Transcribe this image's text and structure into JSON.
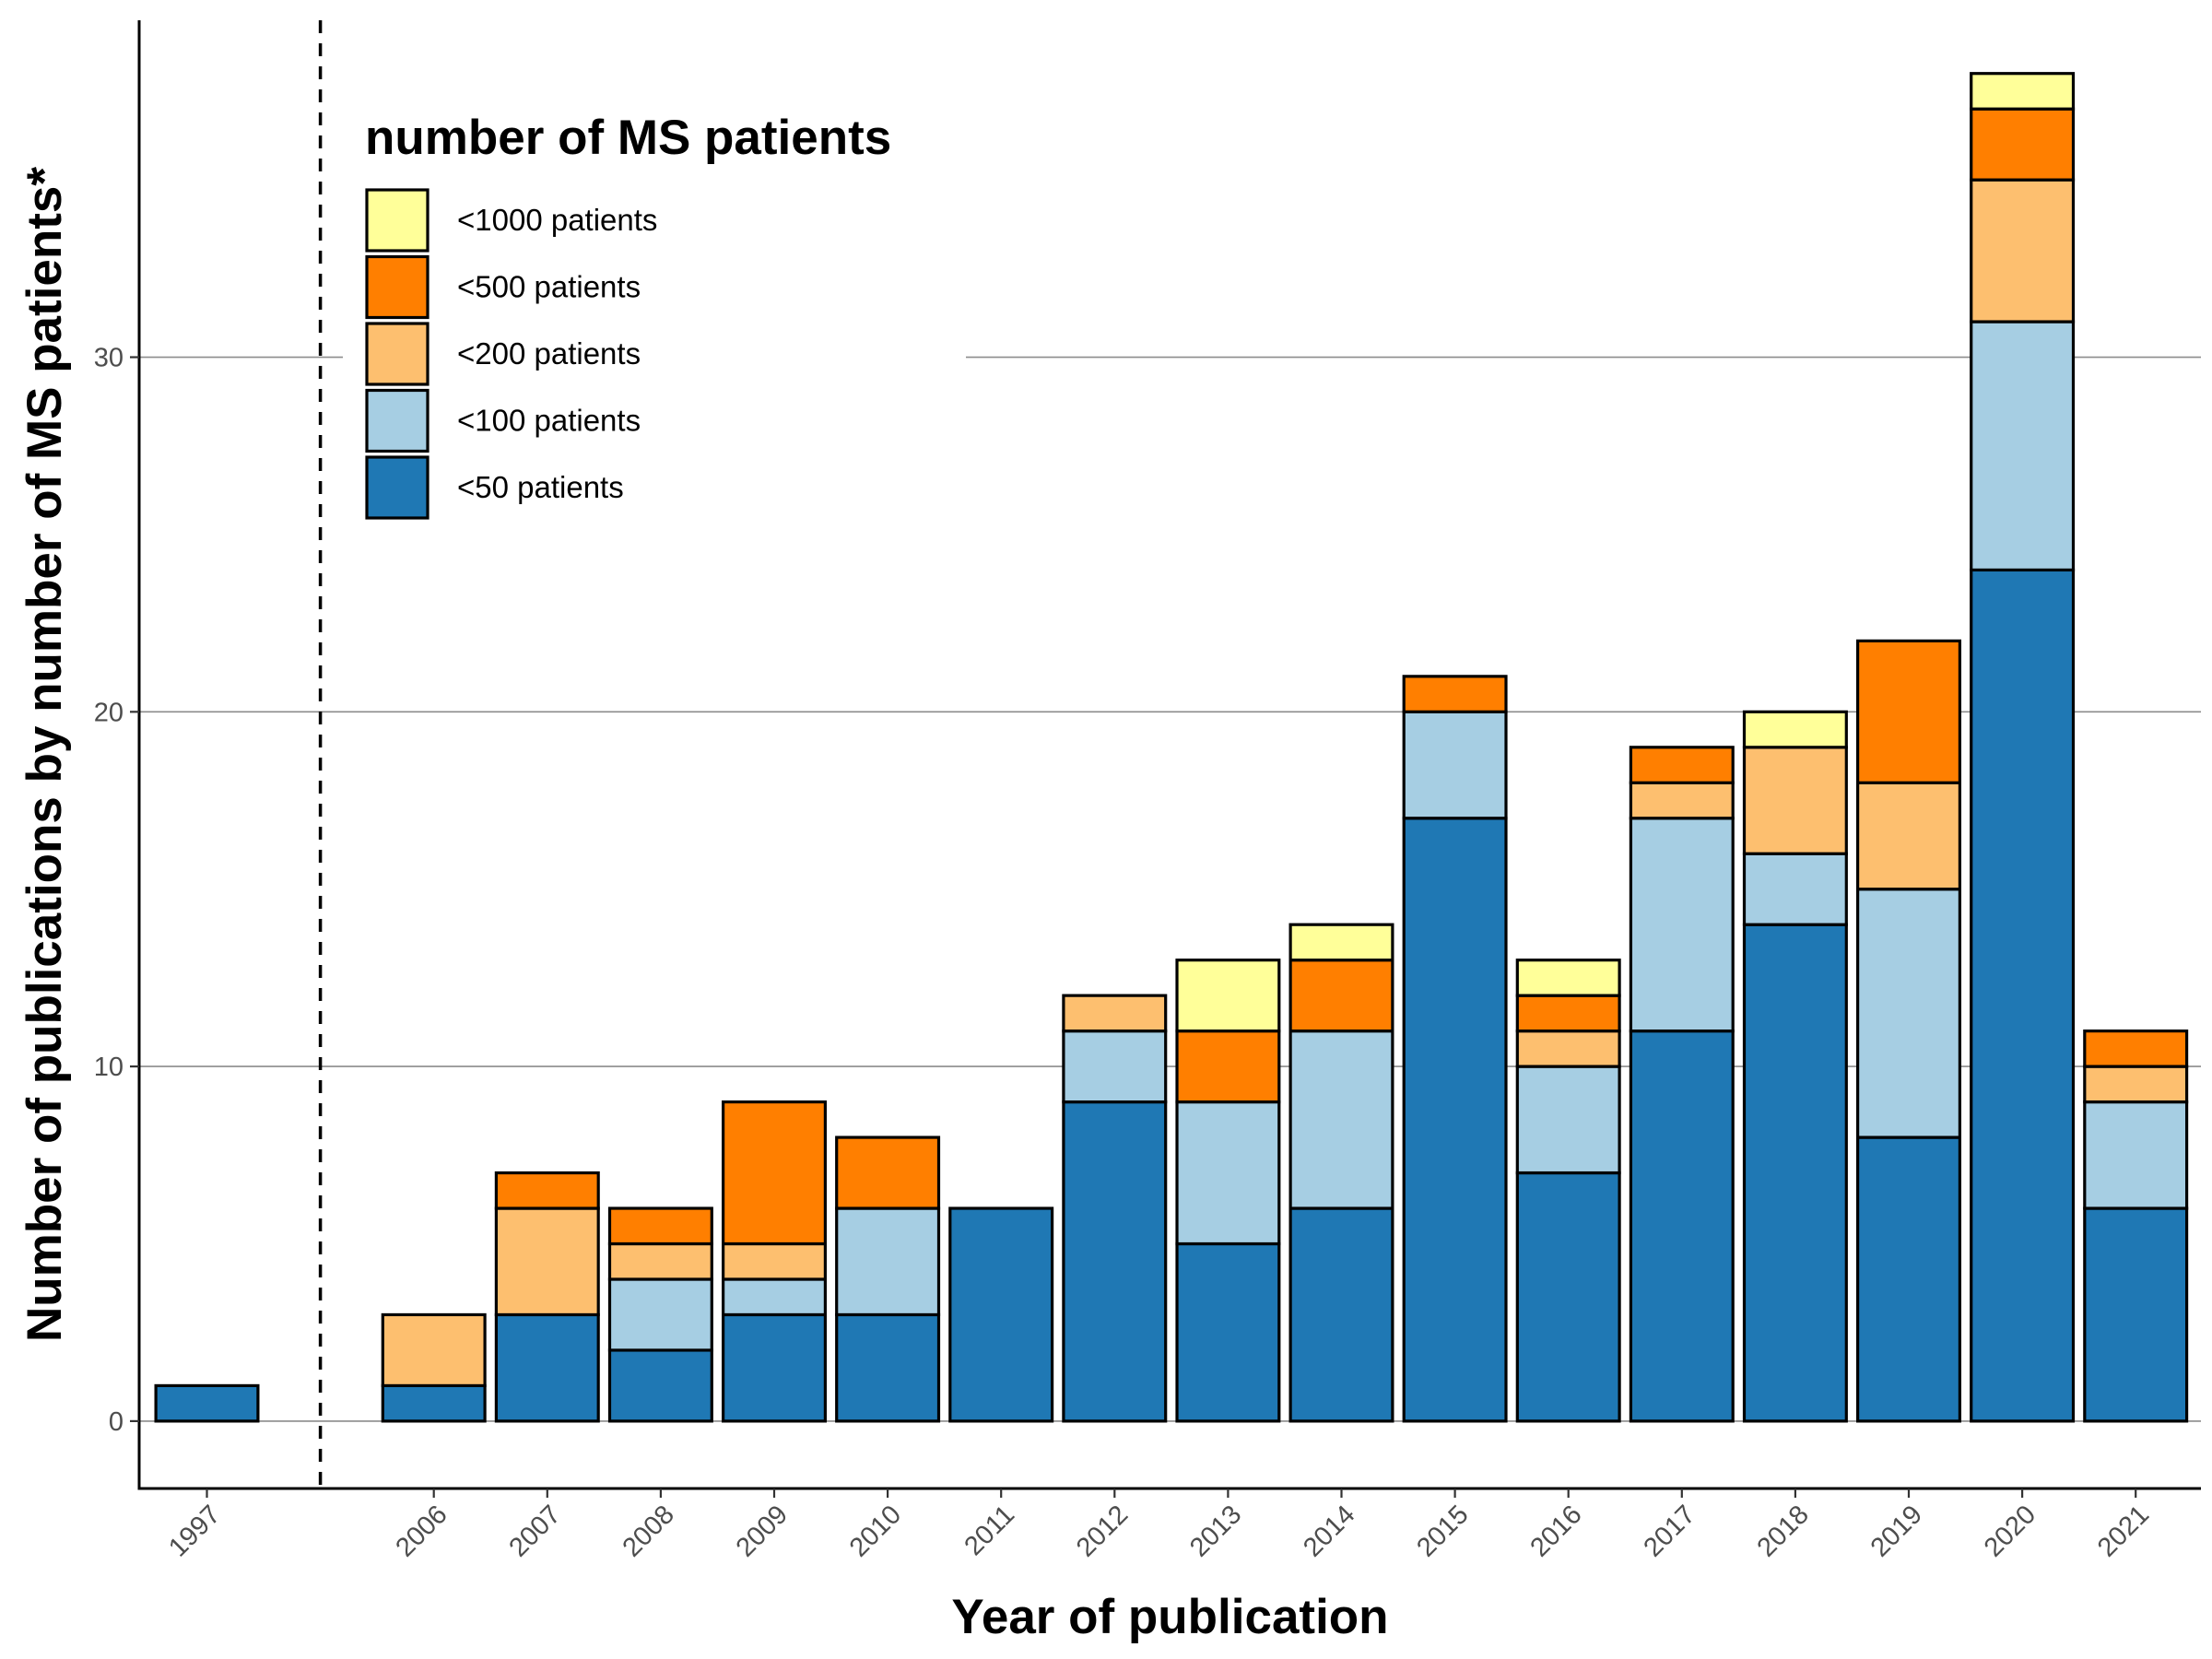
{
  "chart_data": {
    "type": "bar",
    "stacked": true,
    "categories": [
      "1997",
      "2006",
      "2007",
      "2008",
      "2009",
      "2010",
      "2011",
      "2012",
      "2013",
      "2014",
      "2015",
      "2016",
      "2017",
      "2018",
      "2019",
      "2020",
      "2021"
    ],
    "series": [
      {
        "name": "<50 patients",
        "color": "#1f78b4",
        "values": [
          1,
          1,
          3,
          2,
          3,
          3,
          6,
          9,
          5,
          6,
          17,
          7,
          11,
          14,
          8,
          24,
          6
        ]
      },
      {
        "name": "<100 patients",
        "color": "#a6cee3",
        "values": [
          0,
          0,
          0,
          2,
          1,
          3,
          0,
          2,
          4,
          5,
          3,
          3,
          6,
          2,
          7,
          7,
          3
        ]
      },
      {
        "name": "<200 patients",
        "color": "#fdbf6f",
        "values": [
          0,
          2,
          3,
          1,
          1,
          0,
          0,
          1,
          0,
          0,
          0,
          1,
          1,
          3,
          3,
          4,
          1
        ]
      },
      {
        "name": "<500 patients",
        "color": "#ff7f00",
        "values": [
          0,
          0,
          1,
          1,
          4,
          2,
          0,
          0,
          2,
          2,
          1,
          1,
          1,
          0,
          4,
          2,
          1
        ]
      },
      {
        "name": "<1000 patients",
        "color": "#ffff99",
        "values": [
          0,
          0,
          0,
          0,
          0,
          0,
          0,
          0,
          2,
          1,
          0,
          1,
          0,
          1,
          0,
          1,
          0
        ]
      }
    ],
    "legend_order": [
      "<1000 patients",
      "<500 patients",
      "<200 patients",
      "<100 patients",
      "<50 patients"
    ],
    "legend_title": "number of MS patients",
    "legend_position": "top-left",
    "xlabel": "Year of publication",
    "ylabel": "Number of publications by number of MS patients*",
    "ylim": [
      -1.9,
      39.5
    ],
    "yticks": [
      0,
      10,
      20,
      30
    ],
    "grid_horizontal": true,
    "axis_break_after": "1997"
  }
}
